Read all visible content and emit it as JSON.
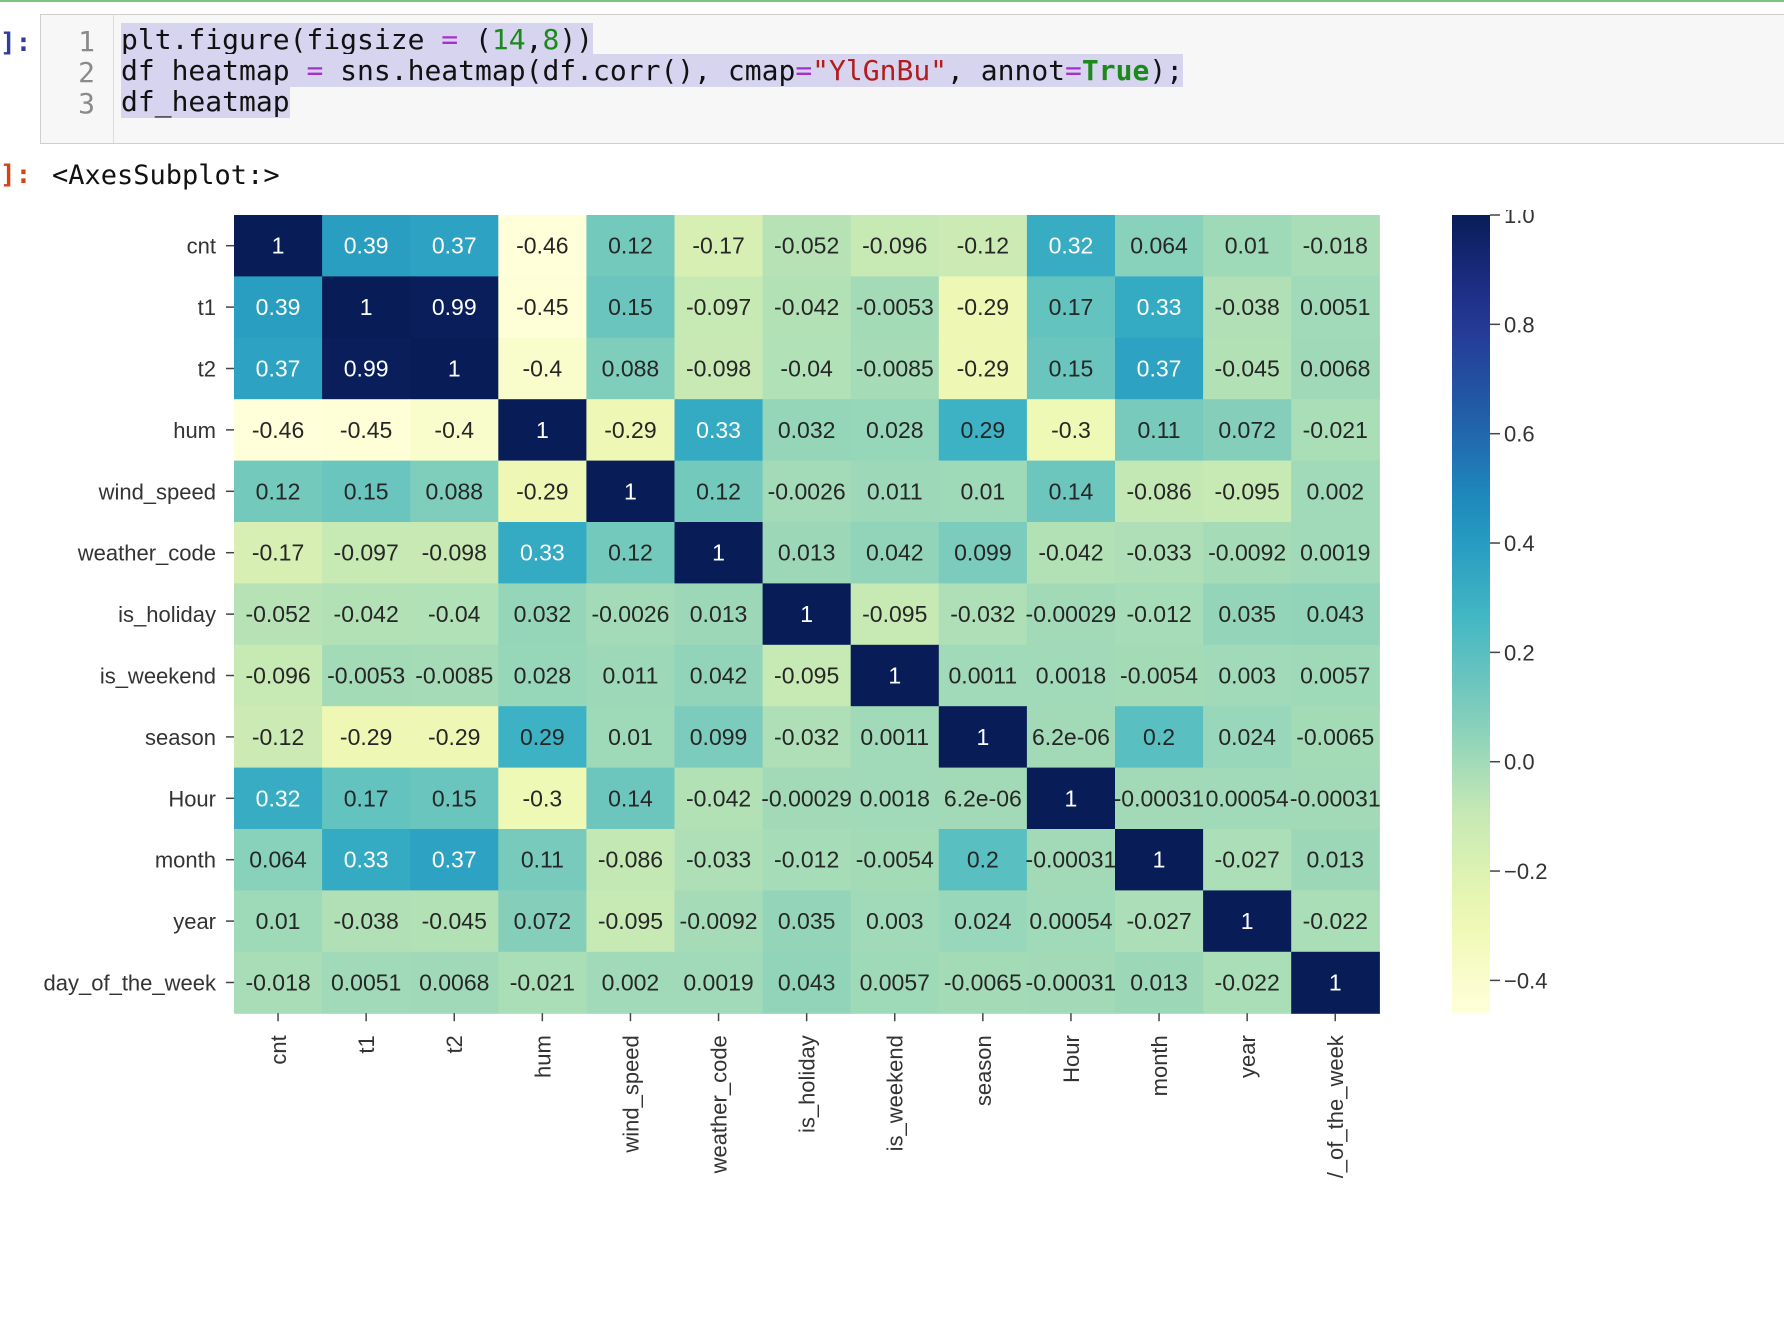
{
  "cell": {
    "in_prompt": "]:",
    "out_prompt": "]:",
    "line_numbers": [
      "1",
      "2",
      "3"
    ],
    "code_lines": [
      [
        {
          "t": "plt.figure(figsize ",
          "c": ""
        },
        {
          "t": "=",
          "c": "op"
        },
        {
          "t": " (",
          "c": ""
        },
        {
          "t": "14",
          "c": "num"
        },
        {
          "t": ",",
          "c": ""
        },
        {
          "t": "8",
          "c": "num"
        },
        {
          "t": "))",
          "c": ""
        }
      ],
      [
        {
          "t": "df_heatmap ",
          "c": ""
        },
        {
          "t": "=",
          "c": "op"
        },
        {
          "t": " sns.heatmap(df.corr(), cmap",
          "c": ""
        },
        {
          "t": "=",
          "c": "op"
        },
        {
          "t": "\"YlGnBu\"",
          "c": "str"
        },
        {
          "t": ", annot",
          "c": ""
        },
        {
          "t": "=",
          "c": "op"
        },
        {
          "t": "True",
          "c": "kw"
        },
        {
          "t": ");",
          "c": ""
        }
      ],
      [
        {
          "t": "df_heatmap",
          "c": ""
        }
      ]
    ],
    "output_text": "<AxesSubplot:>"
  },
  "chart_data": {
    "type": "heatmap",
    "colormap": "YlGnBu",
    "row_labels": [
      "cnt",
      "t1",
      "t2",
      "hum",
      "wind_speed",
      "weather_code",
      "is_holiday",
      "is_weekend",
      "season",
      "Hour",
      "month",
      "year",
      "day_of_the_week"
    ],
    "col_labels": [
      "cnt",
      "t1",
      "t2",
      "hum",
      "wind_speed",
      "weather_code",
      "is_holiday",
      "is_weekend",
      "season",
      "Hour",
      "month",
      "year",
      "/_of_the_week"
    ],
    "annotations": [
      [
        "1",
        "0.39",
        "0.37",
        "-0.46",
        "0.12",
        "-0.17",
        "-0.052",
        "-0.096",
        "-0.12",
        "0.32",
        "0.064",
        "0.01",
        "-0.018"
      ],
      [
        "0.39",
        "1",
        "0.99",
        "-0.45",
        "0.15",
        "-0.097",
        "-0.042",
        "-0.0053",
        "-0.29",
        "0.17",
        "0.33",
        "-0.038",
        "0.0051"
      ],
      [
        "0.37",
        "0.99",
        "1",
        "-0.4",
        "0.088",
        "-0.098",
        "-0.04",
        "-0.0085",
        "-0.29",
        "0.15",
        "0.37",
        "-0.045",
        "0.0068"
      ],
      [
        "-0.46",
        "-0.45",
        "-0.4",
        "1",
        "-0.29",
        "0.33",
        "0.032",
        "0.028",
        "0.29",
        "-0.3",
        "0.11",
        "0.072",
        "-0.021"
      ],
      [
        "0.12",
        "0.15",
        "0.088",
        "-0.29",
        "1",
        "0.12",
        "-0.0026",
        "0.011",
        "0.01",
        "0.14",
        "-0.086",
        "-0.095",
        "0.002"
      ],
      [
        "-0.17",
        "-0.097",
        "-0.098",
        "0.33",
        "0.12",
        "1",
        "0.013",
        "0.042",
        "0.099",
        "-0.042",
        "-0.033",
        "-0.0092",
        "0.0019"
      ],
      [
        "-0.052",
        "-0.042",
        "-0.04",
        "0.032",
        "-0.0026",
        "0.013",
        "1",
        "-0.095",
        "-0.032",
        "-0.00029",
        "-0.012",
        "0.035",
        "0.043"
      ],
      [
        "-0.096",
        "-0.0053",
        "-0.0085",
        "0.028",
        "0.011",
        "0.042",
        "-0.095",
        "1",
        "0.0011",
        "0.0018",
        "-0.0054",
        "0.003",
        "0.0057"
      ],
      [
        "-0.12",
        "-0.29",
        "-0.29",
        "0.29",
        "0.01",
        "0.099",
        "-0.032",
        "0.0011",
        "1",
        "6.2e-06",
        "0.2",
        "0.024",
        "-0.0065"
      ],
      [
        "0.32",
        "0.17",
        "0.15",
        "-0.3",
        "0.14",
        "-0.042",
        "-0.00029",
        "0.0018",
        "6.2e-06",
        "1",
        "-0.00031",
        "0.00054",
        "-0.00031"
      ],
      [
        "0.064",
        "0.33",
        "0.37",
        "0.11",
        "-0.086",
        "-0.033",
        "-0.012",
        "-0.0054",
        "0.2",
        "-0.00031",
        "1",
        "-0.027",
        "0.013"
      ],
      [
        "0.01",
        "-0.038",
        "-0.045",
        "0.072",
        "-0.095",
        "-0.0092",
        "0.035",
        "0.003",
        "0.024",
        "0.00054",
        "-0.027",
        "1",
        "-0.022"
      ],
      [
        "-0.018",
        "0.0051",
        "0.0068",
        "-0.021",
        "0.002",
        "0.0019",
        "0.043",
        "0.0057",
        "-0.0065",
        "-0.00031",
        "0.013",
        "-0.022",
        "1"
      ]
    ],
    "colorbar": {
      "range": [
        -0.46,
        1.0
      ],
      "ticks": [
        "1.0",
        "0.8",
        "0.6",
        "0.4",
        "0.2",
        "0.0",
        "−0.2",
        "−0.4"
      ],
      "tick_values": [
        1.0,
        0.8,
        0.6,
        0.4,
        0.2,
        0.0,
        -0.2,
        -0.4
      ]
    },
    "xlabel": "",
    "ylabel": "",
    "title": "",
    "grid": false
  }
}
